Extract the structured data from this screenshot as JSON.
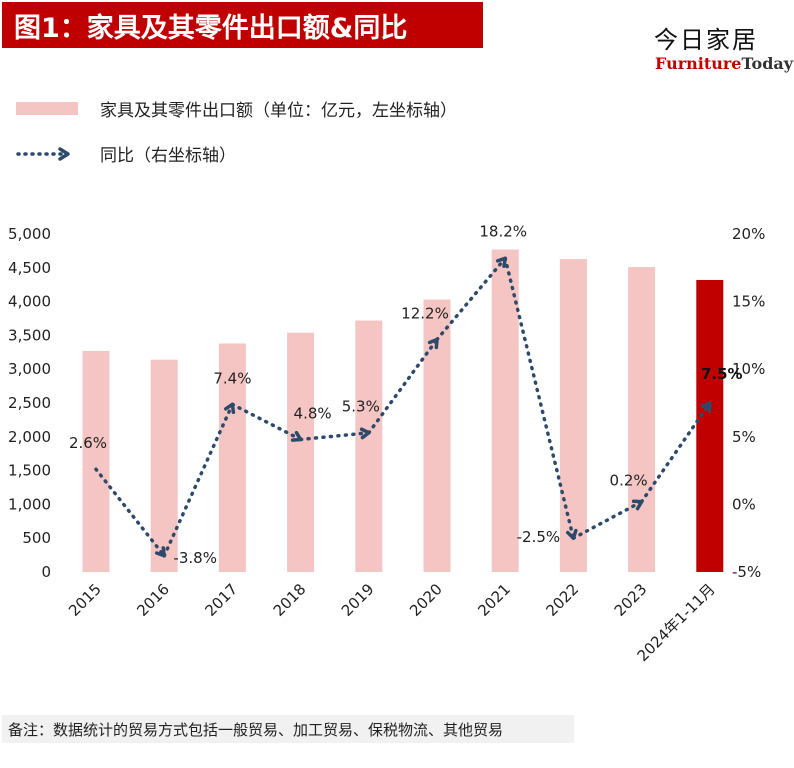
{
  "header": {
    "title": "图1：家具及其零件出口额&同比",
    "brand_cn": "今日家居",
    "brand_en_part1": "Furniture",
    "brand_en_part2": "Today"
  },
  "legend": {
    "bar_label": "家具及其零件出口额（单位：亿元，左坐标轴）",
    "line_label": "同比（右坐标轴）"
  },
  "note": "备注：数据统计的贸易方式包括一般贸易、加工贸易、保税物流、其他贸易",
  "chart_data": {
    "type": "bar",
    "categories": [
      "2015",
      "2016",
      "2017",
      "2018",
      "2019",
      "2020",
      "2021",
      "2022",
      "2023",
      "2024年1-11月"
    ],
    "series": [
      {
        "name": "家具及其零件出口额（单位：亿元，左坐标轴）",
        "type": "bar",
        "axis": "left",
        "values": [
          3270,
          3140,
          3380,
          3540,
          3720,
          4030,
          4770,
          4630,
          4510,
          4320
        ],
        "color": "#f5c5c3",
        "highlight_color": "#c00000",
        "highlight_index": 9
      },
      {
        "name": "同比（右坐标轴）",
        "type": "line",
        "axis": "right",
        "style": "dotted",
        "values": [
          2.6,
          -3.8,
          7.4,
          4.8,
          5.3,
          12.2,
          18.2,
          -2.5,
          0.2,
          7.5
        ],
        "labels": [
          "2.6%",
          "-3.8%",
          "7.4%",
          "4.8%",
          "5.3%",
          "12.2%",
          "18.2%",
          "-2.5%",
          "0.2%",
          "7.5%"
        ],
        "color": "#2e4a6b"
      }
    ],
    "y_left": {
      "ticks": [
        "0",
        "500",
        "1,000",
        "1,500",
        "2,000",
        "2,500",
        "3,000",
        "3,500",
        "4,000",
        "4,500",
        "5,000"
      ],
      "range": [
        0,
        5000
      ]
    },
    "y_right": {
      "ticks": [
        "-5%",
        "0%",
        "5%",
        "10%",
        "15%",
        "20%"
      ],
      "range": [
        -5,
        20
      ]
    },
    "grid": false
  }
}
